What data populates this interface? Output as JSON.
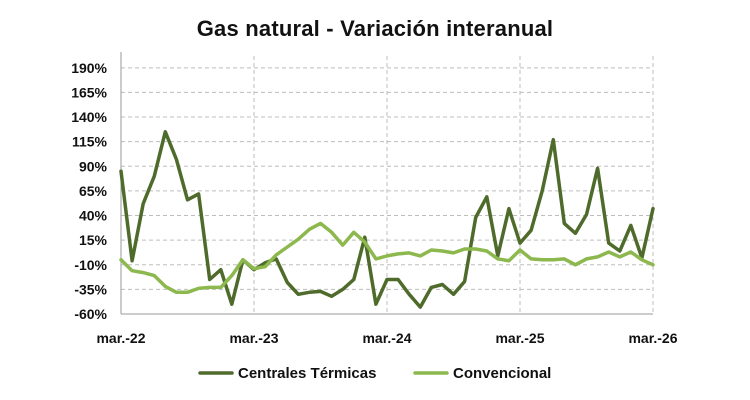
{
  "chart_data": {
    "type": "line",
    "title": "Gas natural - Variación interanual",
    "xlabel": "",
    "ylabel": "",
    "x": [
      "2022-03",
      "2022-04",
      "2022-05",
      "2022-06",
      "2022-07",
      "2022-08",
      "2022-09",
      "2022-10",
      "2022-11",
      "2022-12",
      "2023-01",
      "2023-02",
      "2023-03",
      "2023-04",
      "2023-05",
      "2023-06",
      "2023-07",
      "2023-08",
      "2023-09",
      "2023-10",
      "2023-11",
      "2023-12",
      "2024-01",
      "2024-02",
      "2024-03",
      "2024-04",
      "2024-05",
      "2024-06",
      "2024-07",
      "2024-08",
      "2024-09",
      "2024-10",
      "2024-11",
      "2024-12",
      "2025-01",
      "2025-02",
      "2025-03",
      "2025-04",
      "2025-05",
      "2025-06",
      "2025-07",
      "2025-08",
      "2025-09",
      "2025-10",
      "2025-11",
      "2025-12",
      "2026-01",
      "2026-02",
      "2026-03"
    ],
    "x_tick_labels": [
      "mar.-22",
      "mar.-23",
      "mar.-24",
      "mar.-25",
      "mar.-26"
    ],
    "x_tick_indices": [
      0,
      12,
      24,
      36,
      48
    ],
    "y_ticks": [
      -60,
      -35,
      -10,
      15,
      40,
      65,
      90,
      115,
      140,
      165,
      190
    ],
    "y_tick_labels": [
      "-60%",
      "-35%",
      "-10%",
      "15%",
      "40%",
      "65%",
      "90%",
      "115%",
      "140%",
      "165%",
      "190%"
    ],
    "ylim": [
      -60,
      202
    ],
    "grid": "dashed",
    "legend_position": "bottom",
    "series": [
      {
        "name": "Centrales Térmicas",
        "color": "#4e6b2b",
        "values": [
          85,
          -6,
          52,
          80,
          125,
          97,
          56,
          62,
          -25,
          -15,
          -50,
          -5,
          -15,
          -8,
          -4,
          -28,
          -40,
          -38,
          -37,
          -42,
          -35,
          -25,
          18,
          -50,
          -25,
          -25,
          -40,
          -53,
          -33,
          -30,
          -40,
          -27,
          38,
          59,
          -1,
          47,
          12,
          25,
          65,
          117,
          32,
          22,
          41,
          88,
          12,
          4,
          30,
          -3,
          47
        ]
      },
      {
        "name": "Convencional",
        "color": "#8cb84d",
        "values": [
          -5,
          -16,
          -18,
          -21,
          -32,
          -38,
          -38,
          -34,
          -33,
          -33,
          -21,
          -5,
          -14,
          -12,
          0,
          8,
          16,
          26,
          32,
          23,
          10,
          23,
          13,
          -4,
          -1,
          1,
          2,
          -1,
          5,
          4,
          2,
          6,
          6,
          4,
          -4,
          -6,
          5,
          -4,
          -5,
          -5,
          -4,
          -10,
          -4,
          -2,
          3,
          -2,
          3,
          -5,
          -10
        ]
      }
    ]
  }
}
